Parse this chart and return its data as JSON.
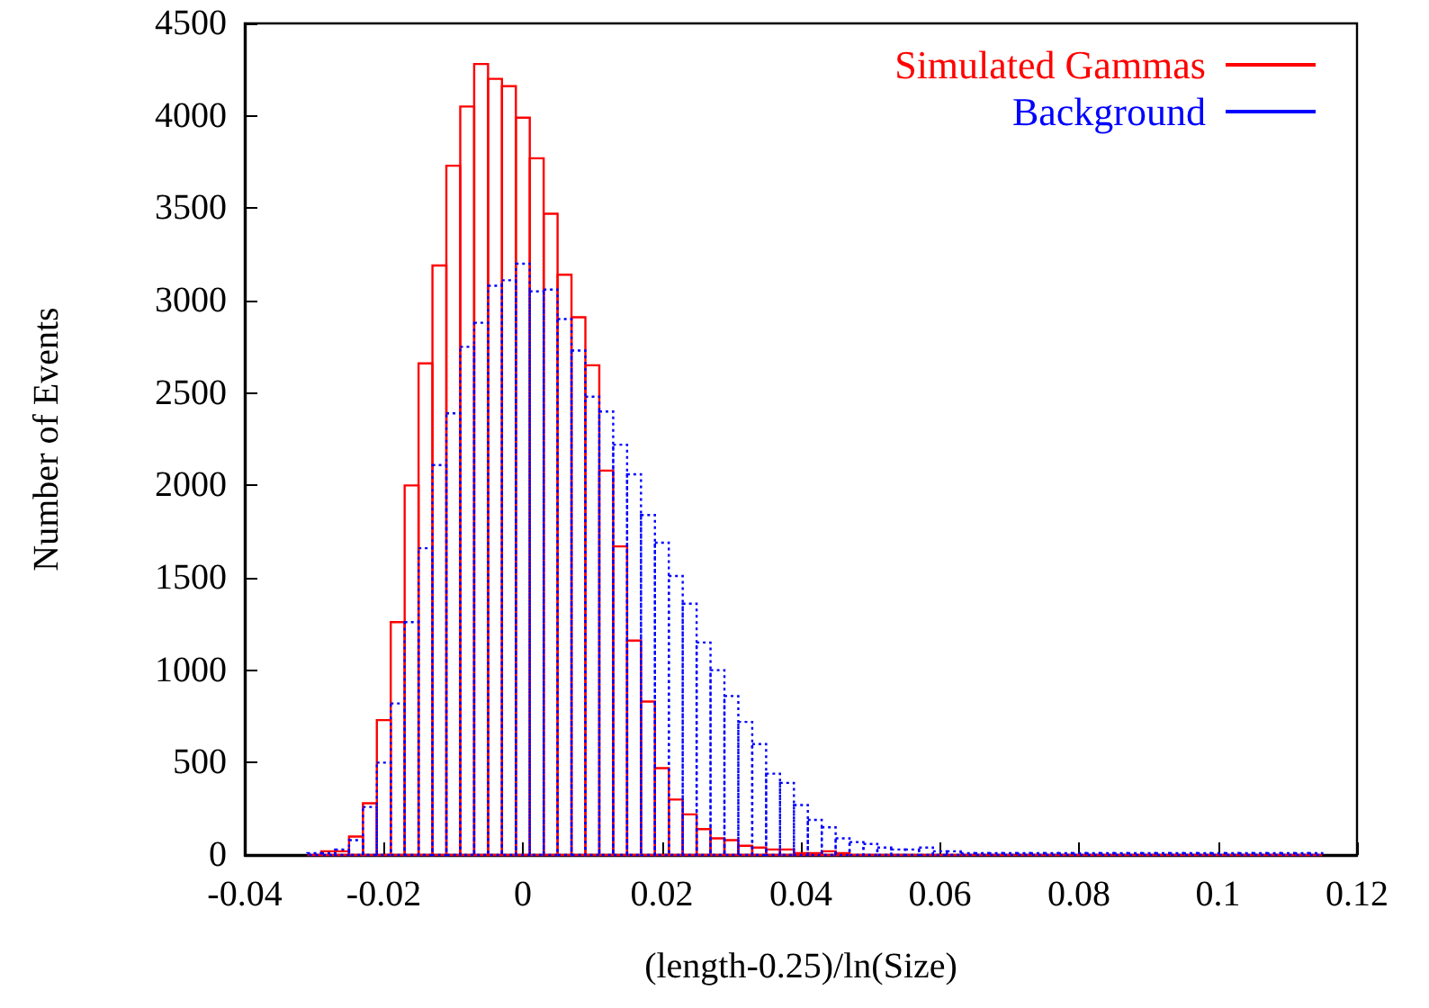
{
  "chart_data": {
    "type": "histogram",
    "xlabel": "(length-0.25)/ln(Size)",
    "ylabel": "Number of Events",
    "bins": [
      -0.031,
      -0.029,
      -0.027,
      -0.025,
      -0.023,
      -0.021,
      -0.019,
      -0.017,
      -0.015,
      -0.013,
      -0.011,
      -0.009,
      -0.007,
      -0.005,
      -0.003,
      -0.001,
      0.001,
      0.003,
      0.005,
      0.007,
      0.009,
      0.011,
      0.013,
      0.015,
      0.017,
      0.019,
      0.021,
      0.023,
      0.025,
      0.027,
      0.029,
      0.031,
      0.033,
      0.035,
      0.037,
      0.039,
      0.041,
      0.043,
      0.045,
      0.047,
      0.049,
      0.051,
      0.053,
      0.055,
      0.057,
      0.059,
      0.061,
      0.063,
      0.065,
      0.067,
      0.069,
      0.071,
      0.073,
      0.075,
      0.077,
      0.079,
      0.081,
      0.083,
      0.085,
      0.087,
      0.089,
      0.091,
      0.093,
      0.095,
      0.097,
      0.099,
      0.101,
      0.103,
      0.105,
      0.107,
      0.109,
      0.111,
      0.113,
      0.115
    ],
    "series": [
      {
        "name": "Simulated Gammas",
        "color": "#ff0000",
        "line_style": "solid",
        "values": [
          0,
          20,
          20,
          100,
          280,
          730,
          1260,
          2000,
          2660,
          3190,
          3730,
          4050,
          4280,
          4200,
          4160,
          3990,
          3770,
          3470,
          3140,
          2910,
          2650,
          2080,
          1670,
          1160,
          830,
          470,
          300,
          220,
          140,
          90,
          80,
          50,
          40,
          30,
          30,
          10,
          10,
          20,
          10,
          0,
          0,
          0,
          0,
          0,
          0,
          0,
          0,
          0,
          0,
          0,
          0,
          0,
          0,
          0,
          0,
          0,
          0,
          0,
          0,
          0,
          0,
          0,
          0,
          0,
          0,
          0,
          0,
          0,
          0,
          0,
          0,
          0,
          0
        ]
      },
      {
        "name": "Background",
        "color": "#0000ff",
        "line_style": "dotted",
        "values": [
          10,
          10,
          30,
          80,
          260,
          500,
          820,
          1260,
          1660,
          2110,
          2390,
          2750,
          2880,
          3080,
          3110,
          3200,
          3050,
          3060,
          2900,
          2730,
          2480,
          2400,
          2220,
          2060,
          1840,
          1690,
          1510,
          1360,
          1150,
          1000,
          860,
          720,
          600,
          440,
          390,
          270,
          190,
          150,
          90,
          70,
          60,
          40,
          30,
          30,
          40,
          20,
          20,
          10,
          10,
          10,
          10,
          10,
          10,
          10,
          10,
          10,
          10,
          10,
          10,
          10,
          10,
          10,
          10,
          10,
          10,
          10,
          10,
          10,
          10,
          10,
          10,
          10,
          10
        ]
      }
    ],
    "xlim": [
      -0.04,
      0.12
    ],
    "xticks": [
      -0.04,
      -0.02,
      0,
      0.02,
      0.04,
      0.06,
      0.08,
      0.1,
      0.12
    ],
    "ylim": [
      0,
      4500
    ],
    "yticks": [
      0,
      500,
      1000,
      1500,
      2000,
      2500,
      3000,
      3500,
      4000,
      4500
    ],
    "legend": "top right",
    "grid": false
  }
}
